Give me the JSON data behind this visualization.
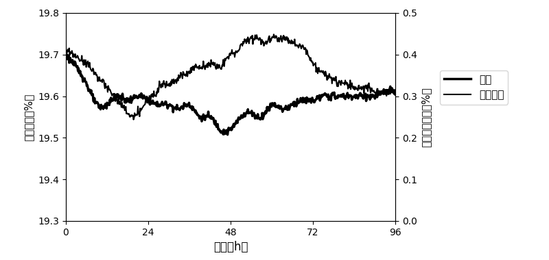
{
  "title": "",
  "xlabel": "时间（h）",
  "ylabel_left": "氧气浓度（%）",
  "ylabel_right": "二氧化碳浓度（%）",
  "xlim": [
    0,
    96
  ],
  "ylim_left": [
    19.3,
    19.8
  ],
  "ylim_right": [
    0.0,
    0.5
  ],
  "xticks": [
    0,
    24,
    48,
    72,
    96
  ],
  "yticks_left": [
    19.3,
    19.4,
    19.5,
    19.6,
    19.7,
    19.8
  ],
  "yticks_right": [
    0.0,
    0.1,
    0.2,
    0.3,
    0.4,
    0.5
  ],
  "legend_o2": "氧气",
  "legend_co2": "二氧化碳",
  "line_color": "#000000",
  "background_color": "#ffffff",
  "o2_x": [
    0,
    3,
    6,
    9,
    12,
    15,
    18,
    21,
    24,
    27,
    30,
    33,
    36,
    39,
    42,
    45,
    48,
    51,
    54,
    57,
    60,
    63,
    66,
    69,
    72,
    75,
    78,
    81,
    84,
    87,
    90,
    93,
    96
  ],
  "o2_y": [
    19.7,
    19.67,
    19.63,
    19.58,
    19.58,
    19.6,
    19.59,
    19.6,
    19.59,
    19.58,
    19.58,
    19.57,
    19.58,
    19.55,
    19.55,
    19.52,
    19.52,
    19.55,
    19.56,
    19.55,
    19.58,
    19.57,
    19.58,
    19.59,
    19.59,
    19.6,
    19.6,
    19.6,
    19.6,
    19.6,
    19.6,
    19.61,
    19.61
  ],
  "co2_x": [
    0,
    2,
    4,
    6,
    8,
    10,
    12,
    14,
    16,
    18,
    20,
    22,
    24,
    26,
    28,
    30,
    32,
    34,
    36,
    38,
    40,
    42,
    44,
    46,
    48,
    50,
    52,
    54,
    56,
    58,
    60,
    62,
    64,
    66,
    68,
    70,
    72,
    74,
    76,
    78,
    80,
    82,
    84,
    86,
    88,
    90,
    92,
    94,
    96
  ],
  "co2_y": [
    0.41,
    0.4,
    0.39,
    0.38,
    0.36,
    0.34,
    0.32,
    0.3,
    0.28,
    0.26,
    0.25,
    0.27,
    0.29,
    0.31,
    0.33,
    0.33,
    0.34,
    0.35,
    0.36,
    0.37,
    0.37,
    0.38,
    0.37,
    0.38,
    0.4,
    0.41,
    0.43,
    0.44,
    0.44,
    0.43,
    0.44,
    0.44,
    0.44,
    0.43,
    0.42,
    0.41,
    0.38,
    0.36,
    0.35,
    0.34,
    0.33,
    0.33,
    0.32,
    0.32,
    0.32,
    0.31,
    0.31,
    0.31,
    0.31
  ],
  "o2_linewidth": 2.5,
  "co2_linewidth": 1.5
}
